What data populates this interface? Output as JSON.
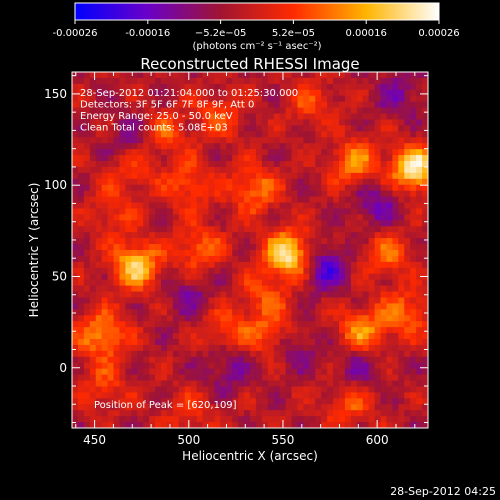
{
  "chart_data": {
    "type": "heatmap",
    "title": "Reconstructed RHESSI Image",
    "xlabel": "Heliocentric X (arcsec)",
    "ylabel": "Heliocentric Y (arcsec)",
    "xlim": [
      438,
      627
    ],
    "ylim": [
      -33,
      162
    ],
    "xticks": [
      450,
      500,
      550,
      600
    ],
    "yticks": [
      0,
      50,
      100,
      150
    ],
    "colorbar": {
      "min": -0.00026,
      "max": 0.00026,
      "ticks": [
        "-0.00026",
        "-0.00016",
        "−5.2e−05",
        "5.2e−05",
        "0.00016",
        "0.00026"
      ],
      "label": "(photons cm⁻² s⁻¹ asec⁻²)",
      "colors": [
        "#0000ff",
        "#6a00c8",
        "#a01432",
        "#ff2a00",
        "#ffb400",
        "#ffffff"
      ]
    },
    "annotations": [
      "28-Sep-2012 01:21:04.000 to 01:25:30.000",
      "Detectors: 3F 5F 6F 7F 8F 9F, Att 0",
      "Energy Range: 25.0 - 50.0 keV",
      "Clean    Total counts: 5.08E+03"
    ],
    "peak_text": "Position of Peak = [620,109]",
    "peak": [
      620,
      109
    ],
    "hotspots": [
      {
        "x": 553,
        "y": 62,
        "amp": 1.0
      },
      {
        "x": 620,
        "y": 109,
        "amp": 1.0
      },
      {
        "x": 472,
        "y": 56,
        "amp": 0.85
      },
      {
        "x": 535,
        "y": 98,
        "amp": 0.55
      },
      {
        "x": 588,
        "y": 112,
        "amp": 0.6
      },
      {
        "x": 454,
        "y": 18,
        "amp": 0.65
      },
      {
        "x": 545,
        "y": 18,
        "amp": 0.55
      },
      {
        "x": 592,
        "y": 20,
        "amp": 0.6
      },
      {
        "x": 615,
        "y": 30,
        "amp": 0.5
      },
      {
        "x": 505,
        "y": 65,
        "amp": 0.5
      },
      {
        "x": 500,
        "y": 100,
        "amp": 0.45
      },
      {
        "x": 487,
        "y": 128,
        "amp": 0.4
      },
      {
        "x": 516,
        "y": 138,
        "amp": 0.4
      },
      {
        "x": 605,
        "y": 62,
        "amp": 0.45
      },
      {
        "x": 565,
        "y": 145,
        "amp": 0.35
      },
      {
        "x": 470,
        "y": 108,
        "amp": 0.35
      },
      {
        "x": 520,
        "y": 20,
        "amp": 0.4
      },
      {
        "x": 585,
        "y": -20,
        "amp": 0.4
      },
      {
        "x": 455,
        "y": -10,
        "amp": 0.35
      },
      {
        "x": 500,
        "y": -25,
        "amp": 0.3
      },
      {
        "x": 540,
        "y": 40,
        "amp": 0.35
      },
      {
        "x": 460,
        "y": 85,
        "amp": 0.3
      }
    ],
    "coldspots": [
      {
        "x": 572,
        "y": 55,
        "amp": -0.55
      },
      {
        "x": 555,
        "y": 12,
        "amp": -0.4
      },
      {
        "x": 520,
        "y": 0,
        "amp": -0.35
      },
      {
        "x": 470,
        "y": 125,
        "amp": -0.3
      },
      {
        "x": 600,
        "y": 90,
        "amp": -0.4
      },
      {
        "x": 590,
        "y": 0,
        "amp": -0.3
      },
      {
        "x": 500,
        "y": 40,
        "amp": -0.3
      },
      {
        "x": 612,
        "y": 150,
        "amp": -0.3
      }
    ]
  },
  "footer": {
    "timestamp": "28-Sep-2012 04:25"
  }
}
